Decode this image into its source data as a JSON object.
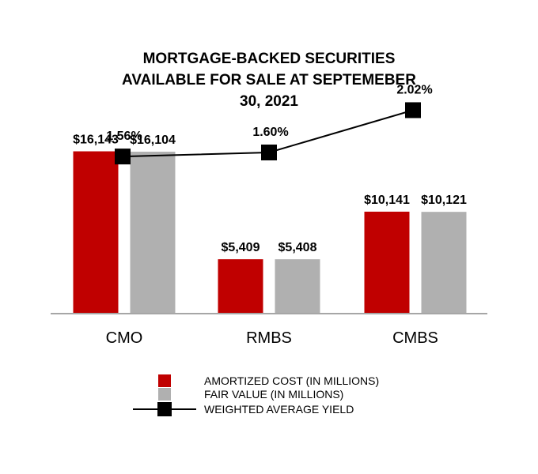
{
  "chart_data": {
    "type": "bar",
    "title_lines": [
      "MORTGAGE-BACKED SECURITIES",
      "AVAILABLE FOR SALE AT SEPTEMEBER",
      "30, 2021"
    ],
    "categories": [
      "CMO",
      "RMBS",
      "CMBS"
    ],
    "series": [
      {
        "name": "AMORTIZED COST (IN MILLIONS)",
        "kind": "bar",
        "color": "#c00000",
        "values": [
          16143,
          5409,
          10141
        ],
        "labels": [
          "$16,143",
          "$5,409",
          "$10,141"
        ]
      },
      {
        "name": "FAIR VALUE (IN MILLIONS)",
        "kind": "bar",
        "color": "#b0b0b0",
        "values": [
          16104,
          5408,
          10121
        ],
        "labels": [
          "$16,104",
          "$5,408",
          "$10,121"
        ]
      },
      {
        "name": "WEIGHTED AVERAGE YIELD",
        "kind": "line",
        "color": "#000000",
        "values": [
          1.56,
          1.6,
          2.02
        ],
        "labels": [
          "1.56%",
          "1.60%",
          "2.02%"
        ]
      }
    ],
    "bar_range": [
      0,
      16500
    ],
    "yield_range": [
      0,
      2.8
    ],
    "grid": false,
    "legend_position": "bottom",
    "axis_color": "#a6a6a6"
  }
}
